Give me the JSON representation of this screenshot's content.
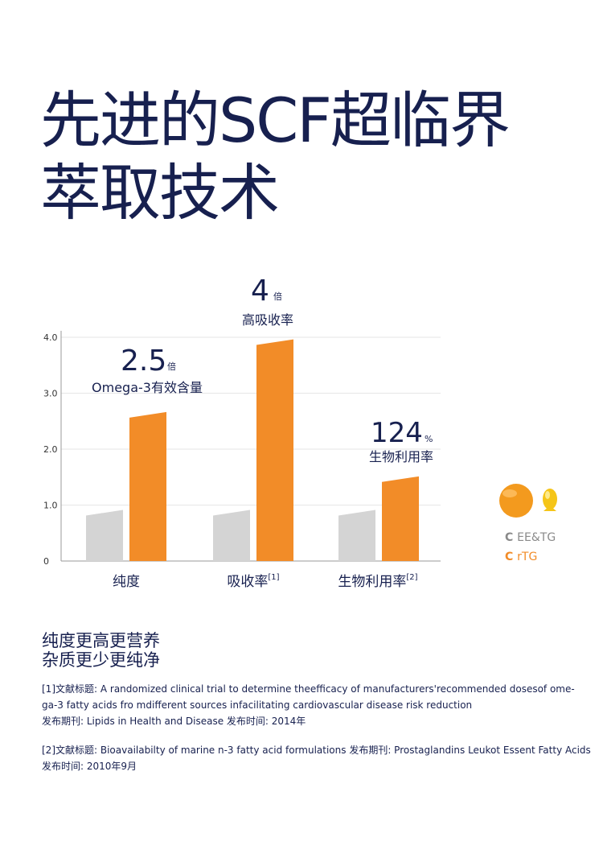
{
  "title": {
    "line1": "先进的SCF超临界",
    "line2": "萃取技术"
  },
  "chart_data": {
    "type": "bar",
    "categories": [
      "纯度",
      "吸收率",
      "生物利用率"
    ],
    "category_superscripts": [
      "",
      "[1]",
      "[2]"
    ],
    "yticks": [
      "0",
      "1.0",
      "2.0",
      "3.0",
      "4.0"
    ],
    "ylim": [
      0,
      4.0
    ],
    "grid": true,
    "series": [
      {
        "name": "EE&TG",
        "values": [
          0.9,
          0.9,
          0.9
        ],
        "color": "#d4d4d4"
      },
      {
        "name": "rTG",
        "values": [
          2.65,
          3.95,
          1.5
        ],
        "color": "#f28c28"
      }
    ],
    "annotations": [
      {
        "value": "2.5",
        "unit": "倍",
        "label": "Omega-3有效含量"
      },
      {
        "value": "4",
        "unit": "倍",
        "label": "高吸收率"
      },
      {
        "value": "124",
        "unit": "%",
        "label": "生物利用率"
      }
    ],
    "legend": {
      "placement": "right",
      "items": [
        {
          "marker": "C",
          "label": "EE&TG",
          "color": "#8a8a8a"
        },
        {
          "marker": "C",
          "label": "rTG",
          "color": "#f28c28"
        }
      ]
    }
  },
  "summary": {
    "line1": "纯度更高更营养",
    "line2": "杂质更少更纯净"
  },
  "references": {
    "ref1_line1": "[1]文献标题: A randomized clinical trial to determine theefficacy of manufacturers'recommended dosesof ome-",
    "ref1_line2": "ga-3 fatty acids fro mdifferent sources infacilitating cardiovascular disease risk reduction",
    "ref1_line3": "发布期刊: Lipids in Health and Disease   发布时间: 2014年",
    "ref2_line1": "[2]文献标题: Bioavailabilty of marine n-3 fatty acid formulations   发布期刊: Prostaglandins Leukot Essent Fatty Acids",
    "ref2_line2": "发布时间: 2010年9月"
  }
}
